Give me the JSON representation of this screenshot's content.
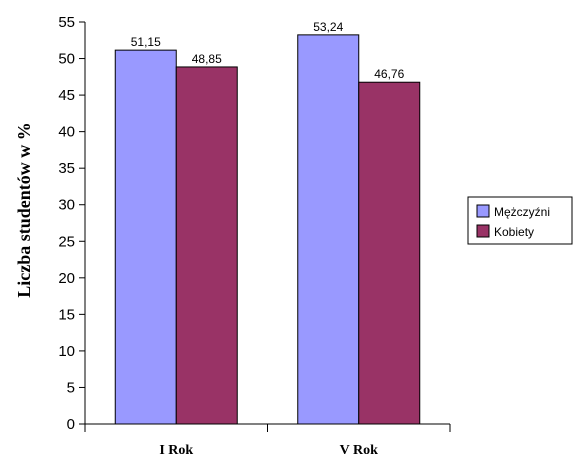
{
  "chart_data": {
    "type": "bar",
    "categories": [
      "I Rok",
      "V Rok"
    ],
    "series": [
      {
        "name": "Mężczyźni",
        "values": [
          51.15,
          53.24
        ],
        "labels": [
          "51,15",
          "53,24"
        ],
        "color": "#9999ff"
      },
      {
        "name": "Kobiety",
        "values": [
          48.85,
          46.76
        ],
        "labels": [
          "48,85",
          "46,76"
        ],
        "color": "#993366"
      }
    ],
    "title": "",
    "xlabel": "",
    "ylabel": "Liczba studentów w %",
    "ylim": [
      0,
      55
    ],
    "yticks": [
      "0",
      "5",
      "10",
      "15",
      "20",
      "25",
      "30",
      "35",
      "40",
      "45",
      "50",
      "55"
    ],
    "grid": false,
    "legend": "right"
  }
}
